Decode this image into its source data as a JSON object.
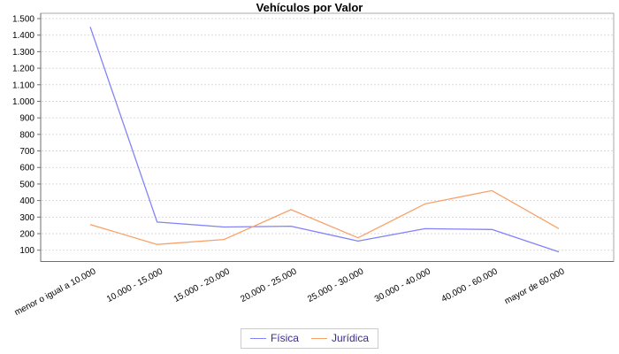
{
  "title": "Vehículos por Valor",
  "legend": {
    "items": [
      {
        "label": "Física",
        "color": "#8282fa"
      },
      {
        "label": "Jurídica",
        "color": "#f9a168"
      }
    ]
  },
  "colors": {
    "series_fisica": "#8282fa",
    "series_juridica": "#f9a168",
    "gridline": "#d9d9d9",
    "plot_border": "#aaaaaa",
    "axis": "#6e6e6e",
    "tick_text": "#000000",
    "legend_text": "#3b2b8c",
    "background": "#ffffff"
  },
  "chart_data": {
    "type": "line",
    "title": "Vehículos por Valor",
    "xlabel": "",
    "ylabel": "",
    "categories": [
      "menor o igual a 10.000",
      "10.000 - 15.000",
      "15.000 - 20.000",
      "20.000 - 25.000",
      "25.000 - 30.000",
      "30.000 - 40.000",
      "40.000 - 60.000",
      "mayor de 60.000"
    ],
    "series": [
      {
        "name": "Física",
        "color": "#8282fa",
        "values": [
          1450,
          270,
          240,
          245,
          155,
          230,
          225,
          90
        ]
      },
      {
        "name": "Jurídica",
        "color": "#f9a168",
        "values": [
          255,
          135,
          165,
          345,
          175,
          380,
          460,
          230
        ]
      }
    ],
    "yticks": [
      "1.500",
      "1.400",
      "1.300",
      "1.200",
      "1.100",
      "1.000",
      "900",
      "800",
      "700",
      "600",
      "500",
      "400",
      "300",
      "200",
      "100"
    ],
    "ytick_values": [
      1500,
      1400,
      1300,
      1200,
      1100,
      1000,
      900,
      800,
      700,
      600,
      500,
      400,
      300,
      200,
      100
    ],
    "ytick_step": 100,
    "grid": "horizontal-dashed",
    "legend_position": "bottom",
    "x_label_rotation_deg": -28
  }
}
